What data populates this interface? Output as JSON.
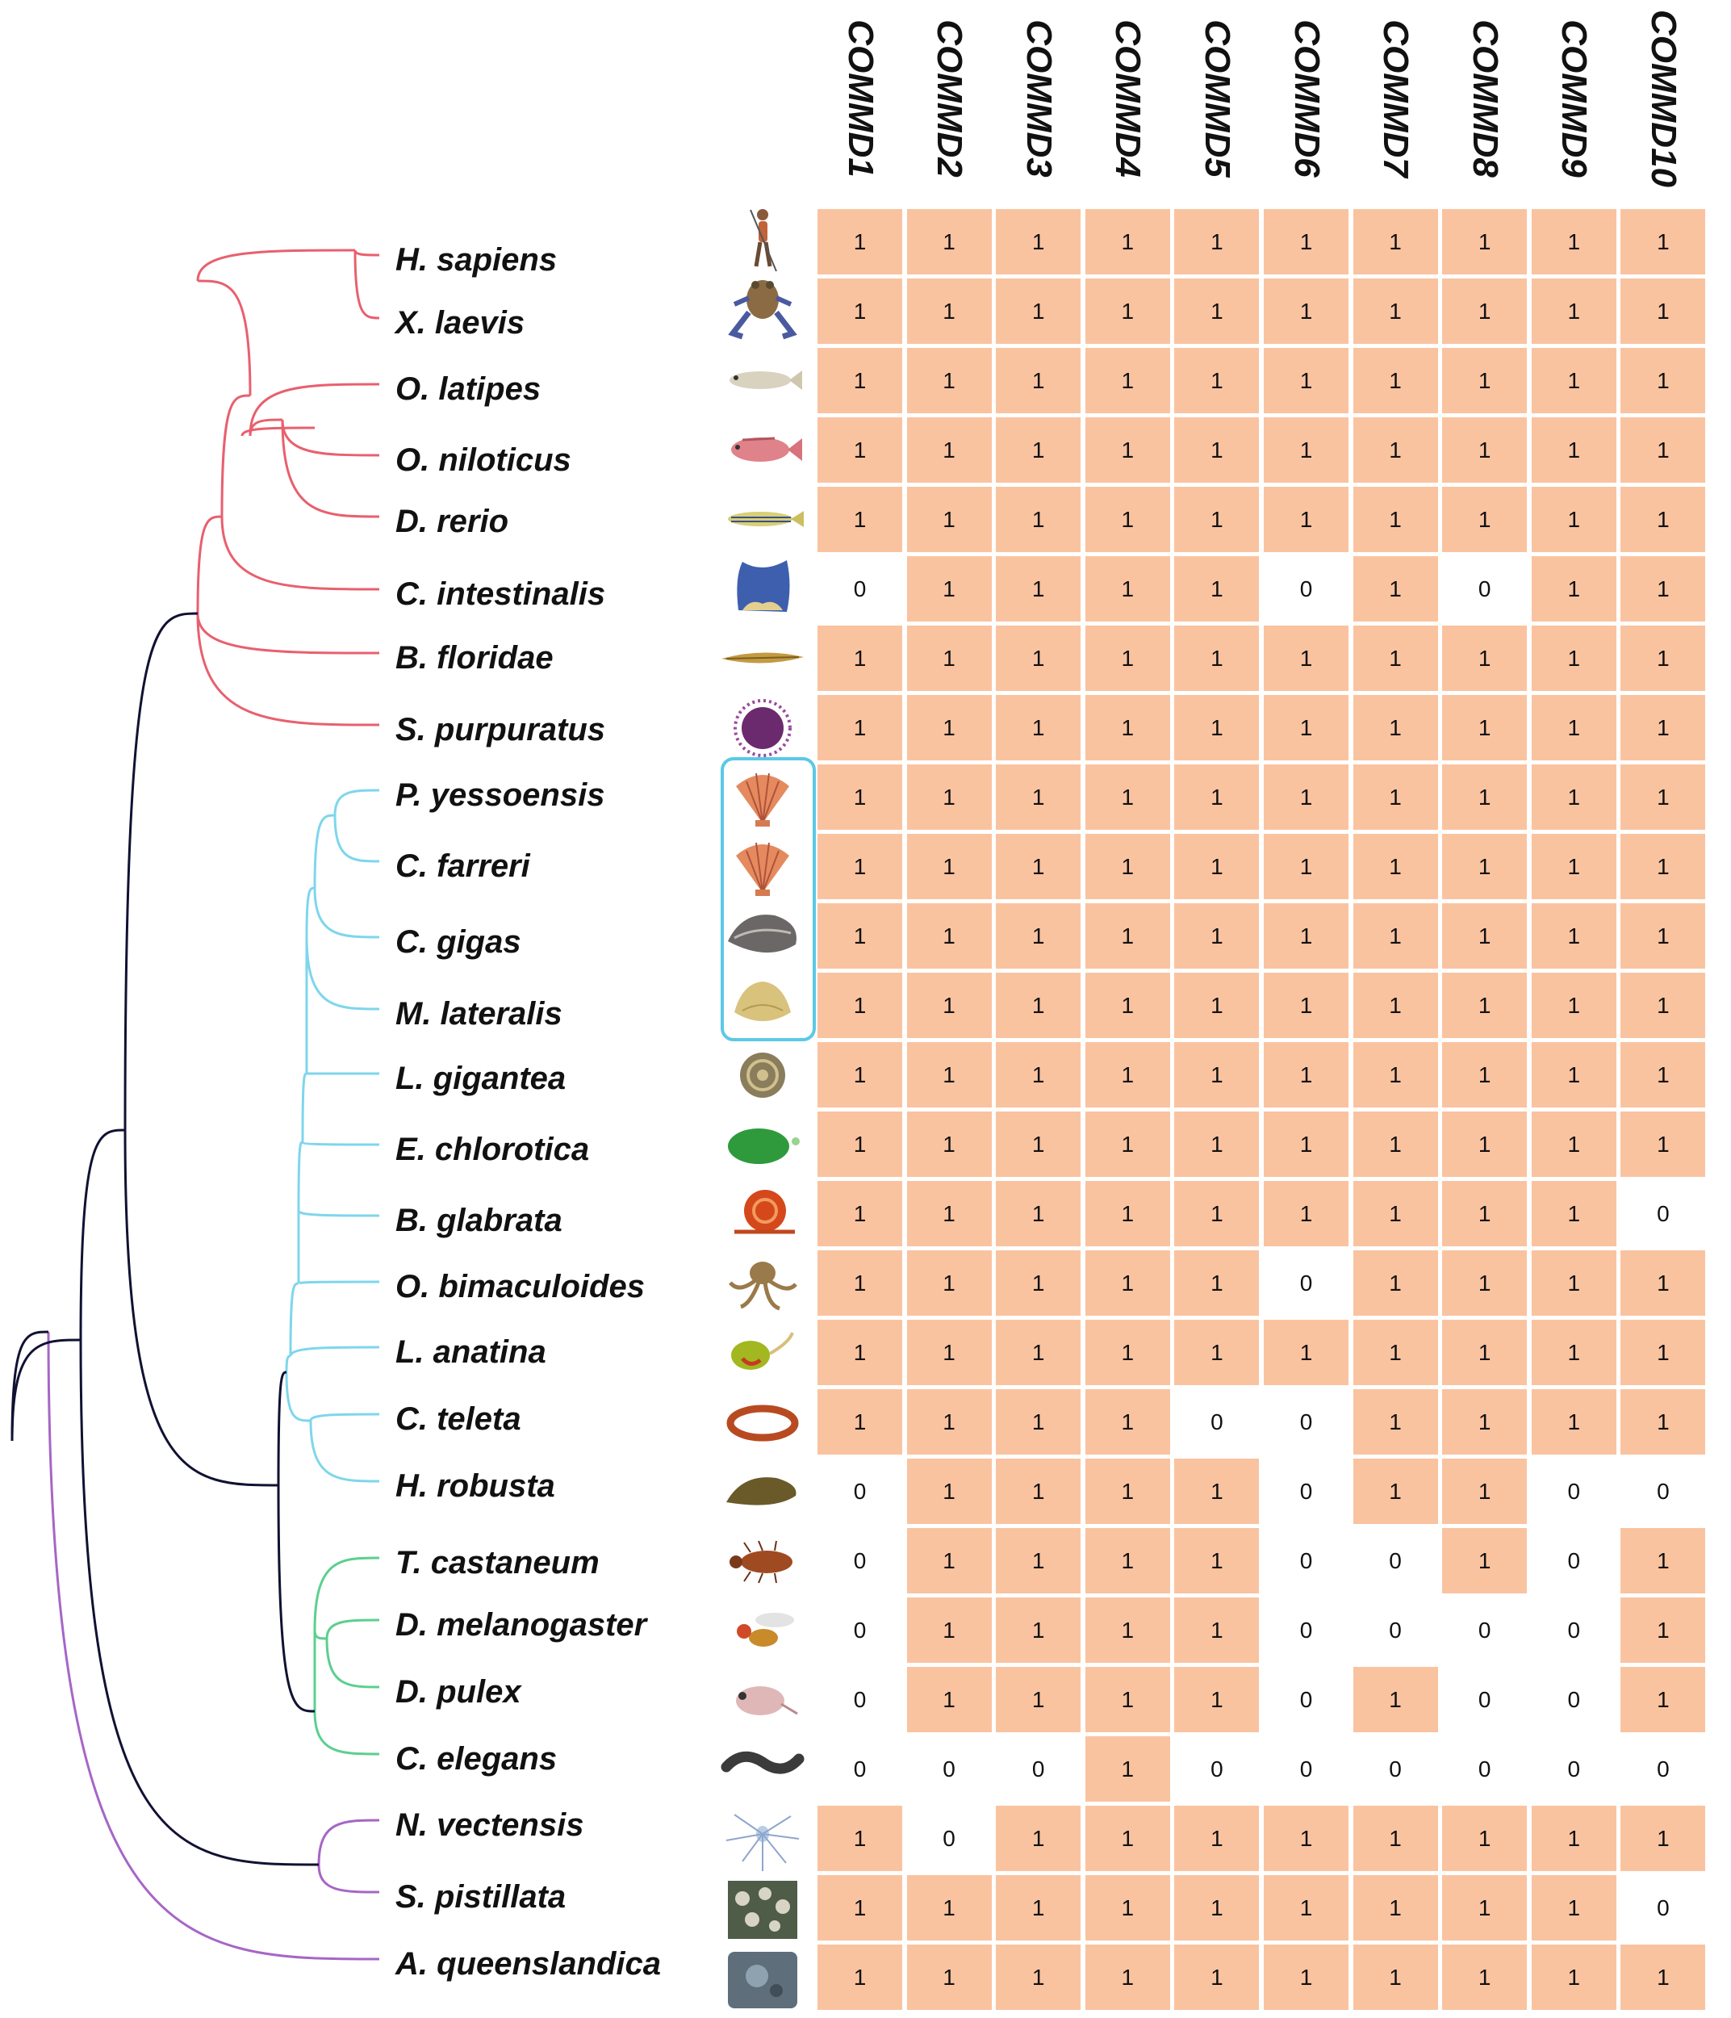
{
  "columns": [
    "COMMD1",
    "COMMD2",
    "COMMD3",
    "COMMD4",
    "COMMD5",
    "COMMD6",
    "COMMD7",
    "COMMD8",
    "COMMD9",
    "COMMD10"
  ],
  "colors": {
    "present": "#fac3a0",
    "absent": "#ffffff",
    "clade_deuterostomia": "#e8606e",
    "clade_lophotrochozoa": "#7ed6ec",
    "clade_ecdysozoa": "#5ccf8f",
    "clade_basal": "#a666c6",
    "backbone": "#111133",
    "bivalve_box": "#5cc8e6"
  },
  "species": [
    {
      "name": "H. sapiens",
      "icon": "human-icon",
      "values": [
        1,
        1,
        1,
        1,
        1,
        1,
        1,
        1,
        1,
        1
      ]
    },
    {
      "name": "X. laevis",
      "icon": "frog-icon",
      "values": [
        1,
        1,
        1,
        1,
        1,
        1,
        1,
        1,
        1,
        1
      ]
    },
    {
      "name": "O. latipes",
      "icon": "medaka-icon",
      "values": [
        1,
        1,
        1,
        1,
        1,
        1,
        1,
        1,
        1,
        1
      ]
    },
    {
      "name": "O. niloticus",
      "icon": "tilapia-icon",
      "values": [
        1,
        1,
        1,
        1,
        1,
        1,
        1,
        1,
        1,
        1
      ]
    },
    {
      "name": "D. rerio",
      "icon": "zebrafish-icon",
      "values": [
        1,
        1,
        1,
        1,
        1,
        1,
        1,
        1,
        1,
        1
      ]
    },
    {
      "name": "C. intestinalis",
      "icon": "sea-squirt-icon",
      "values": [
        0,
        1,
        1,
        1,
        1,
        0,
        1,
        0,
        1,
        1
      ]
    },
    {
      "name": "B. floridae",
      "icon": "lancelet-icon",
      "values": [
        1,
        1,
        1,
        1,
        1,
        1,
        1,
        1,
        1,
        1
      ]
    },
    {
      "name": "S. purpuratus",
      "icon": "sea-urchin-icon",
      "values": [
        1,
        1,
        1,
        1,
        1,
        1,
        1,
        1,
        1,
        1
      ]
    },
    {
      "name": "P. yessoensis",
      "icon": "scallop-icon",
      "values": [
        1,
        1,
        1,
        1,
        1,
        1,
        1,
        1,
        1,
        1
      ]
    },
    {
      "name": "C. farreri",
      "icon": "scallop-icon",
      "values": [
        1,
        1,
        1,
        1,
        1,
        1,
        1,
        1,
        1,
        1
      ]
    },
    {
      "name": "C. gigas",
      "icon": "oyster-icon",
      "values": [
        1,
        1,
        1,
        1,
        1,
        1,
        1,
        1,
        1,
        1
      ]
    },
    {
      "name": "M. lateralis",
      "icon": "clam-icon",
      "values": [
        1,
        1,
        1,
        1,
        1,
        1,
        1,
        1,
        1,
        1
      ]
    },
    {
      "name": "L. gigantea",
      "icon": "limpet-icon",
      "values": [
        1,
        1,
        1,
        1,
        1,
        1,
        1,
        1,
        1,
        1
      ]
    },
    {
      "name": "E. chlorotica",
      "icon": "sea-slug-icon",
      "values": [
        1,
        1,
        1,
        1,
        1,
        1,
        1,
        1,
        1,
        1
      ]
    },
    {
      "name": "B. glabrata",
      "icon": "snail-icon",
      "values": [
        1,
        1,
        1,
        1,
        1,
        1,
        1,
        1,
        1,
        0
      ]
    },
    {
      "name": "O. bimaculoides",
      "icon": "octopus-icon",
      "values": [
        1,
        1,
        1,
        1,
        1,
        0,
        1,
        1,
        1,
        1
      ]
    },
    {
      "name": "L. anatina",
      "icon": "brachiopod-icon",
      "values": [
        1,
        1,
        1,
        1,
        1,
        1,
        1,
        1,
        1,
        1
      ]
    },
    {
      "name": "C. teleta",
      "icon": "worm-icon",
      "values": [
        1,
        1,
        1,
        1,
        0,
        0,
        1,
        1,
        1,
        1
      ]
    },
    {
      "name": "H. robusta",
      "icon": "leech-icon",
      "values": [
        0,
        1,
        1,
        1,
        1,
        0,
        1,
        1,
        0,
        0
      ]
    },
    {
      "name": "T. castaneum",
      "icon": "beetle-icon",
      "values": [
        0,
        1,
        1,
        1,
        1,
        0,
        0,
        1,
        0,
        1
      ]
    },
    {
      "name": "D. melanogaster",
      "icon": "fly-icon",
      "values": [
        0,
        1,
        1,
        1,
        1,
        0,
        0,
        0,
        0,
        1
      ]
    },
    {
      "name": "D. pulex",
      "icon": "daphnia-icon",
      "values": [
        0,
        1,
        1,
        1,
        1,
        0,
        1,
        0,
        0,
        1
      ]
    },
    {
      "name": "C. elegans",
      "icon": "nematode-icon",
      "values": [
        0,
        0,
        0,
        1,
        0,
        0,
        0,
        0,
        0,
        0
      ]
    },
    {
      "name": "N. vectensis",
      "icon": "anemone-icon",
      "values": [
        1,
        0,
        1,
        1,
        1,
        1,
        1,
        1,
        1,
        1
      ]
    },
    {
      "name": "S. pistillata",
      "icon": "coral-icon",
      "values": [
        1,
        1,
        1,
        1,
        1,
        1,
        1,
        1,
        1,
        0
      ]
    },
    {
      "name": "A. queenslandica",
      "icon": "sponge-icon",
      "values": [
        1,
        1,
        1,
        1,
        1,
        1,
        1,
        1,
        1,
        1
      ]
    }
  ]
}
